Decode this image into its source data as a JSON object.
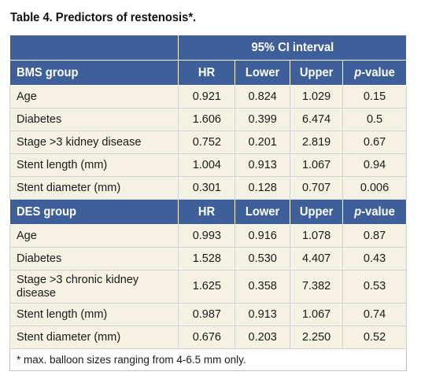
{
  "title": "Table 4. Predictors of restenosis*.",
  "ci_header": "95% CI interval",
  "columns": {
    "hr": "HR",
    "lower": "Lower",
    "upper": "Upper",
    "p_italic": "p",
    "p_rest": "-value"
  },
  "groups": [
    {
      "name": "BMS group",
      "rows": [
        {
          "label": "Age",
          "hr": "0.921",
          "lower": "0.824",
          "upper": "1.029",
          "p": "0.15"
        },
        {
          "label": "Diabetes",
          "hr": "1.606",
          "lower": "0.399",
          "upper": "6.474",
          "p": "0.5"
        },
        {
          "label": "Stage >3 kidney disease",
          "hr": "0.752",
          "lower": "0.201",
          "upper": "2.819",
          "p": "0.67"
        },
        {
          "label": "Stent length (mm)",
          "hr": "1.004",
          "lower": "0.913",
          "upper": "1.067",
          "p": "0.94"
        },
        {
          "label": "Stent diameter (mm)",
          "hr": "0.301",
          "lower": "0.128",
          "upper": "0.707",
          "p": "0.006"
        }
      ]
    },
    {
      "name": "DES group",
      "rows": [
        {
          "label": "Age",
          "hr": "0.993",
          "lower": "0.916",
          "upper": "1.078",
          "p": "0.87"
        },
        {
          "label": "Diabetes",
          "hr": "1.528",
          "lower": "0.530",
          "upper": "4.407",
          "p": "0.43"
        },
        {
          "label": "Stage >3 chronic kidney disease",
          "hr": "1.625",
          "lower": "0.358",
          "upper": "7.382",
          "p": "0.53"
        },
        {
          "label": "Stent length (mm)",
          "hr": "0.987",
          "lower": "0.913",
          "upper": "1.067",
          "p": "0.74"
        },
        {
          "label": "Stent diameter (mm)",
          "hr": "0.676",
          "lower": "0.203",
          "upper": "2.250",
          "p": "0.52"
        }
      ]
    }
  ],
  "footnote": "* max. balloon sizes ranging from 4-6.5 mm only."
}
